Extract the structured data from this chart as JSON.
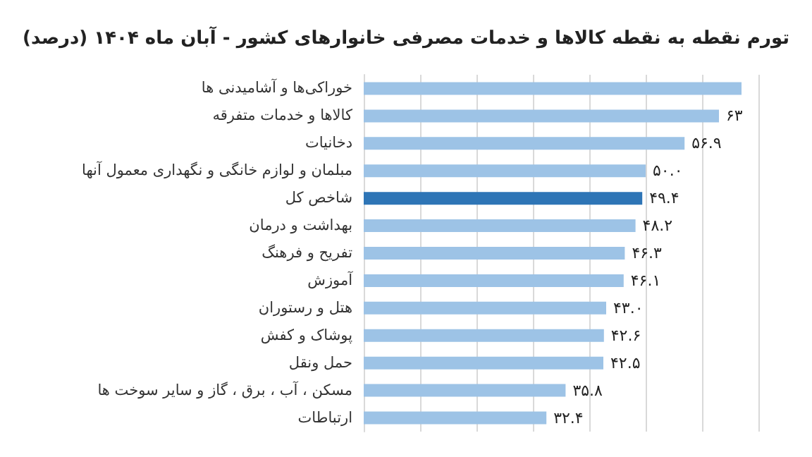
{
  "chart_data": {
    "type": "bar",
    "orientation": "horizontal",
    "title": "تورم نقطه به نقطه کالاها و خدمات مصرفی خانوارهای کشور - آبان ماه ۱۴۰۴ (درصد)",
    "categories": [
      "خوراکی‌ها و آشامیدنی ها",
      "کالاها و خدمات متفرقه",
      "دخانیات",
      "مبلمان و لوازم خانگی و نگهداری معمول آنها",
      "شاخص کل",
      "بهداشت و درمان",
      "تفریح و فرهنگ",
      "آموزش",
      "هتل و رستوران",
      "پوشاک و کفش",
      "حمل ونقل",
      "مسکن ، آب ، برق ، گاز و سایر سوخت ها",
      "ارتباطات"
    ],
    "values": [
      67,
      63,
      56.9,
      50.0,
      49.4,
      48.2,
      46.3,
      46.1,
      43.0,
      42.6,
      42.5,
      35.8,
      32.4
    ],
    "value_labels": [
      null,
      "۶۳",
      "۵۶.۹",
      "۵۰.۰",
      "۴۹.۴",
      "۴۸.۲",
      "۴۶.۳",
      "۴۶.۱",
      "۴۳.۰",
      "۴۲.۶",
      "۴۲.۵",
      "۳۵.۸",
      "۳۲.۴"
    ],
    "colors": [
      "#9dc3e6",
      "#9dc3e6",
      "#9dc3e6",
      "#9dc3e6",
      "#2e75b6",
      "#9dc3e6",
      "#9dc3e6",
      "#9dc3e6",
      "#9dc3e6",
      "#9dc3e6",
      "#9dc3e6",
      "#9dc3e6",
      "#9dc3e6"
    ],
    "xlim": [
      0,
      70
    ],
    "xticks": [
      {
        "value": 0,
        "label": null
      },
      {
        "value": 10,
        "label": null
      },
      {
        "value": 20,
        "label": null
      },
      {
        "value": 30,
        "label": null
      },
      {
        "value": 40,
        "label": null
      },
      {
        "value": 50,
        "label": null
      },
      {
        "value": 60,
        "label": null
      },
      {
        "value": 70,
        "label": null
      }
    ],
    "grid": "x",
    "tick_labels": "y"
  }
}
